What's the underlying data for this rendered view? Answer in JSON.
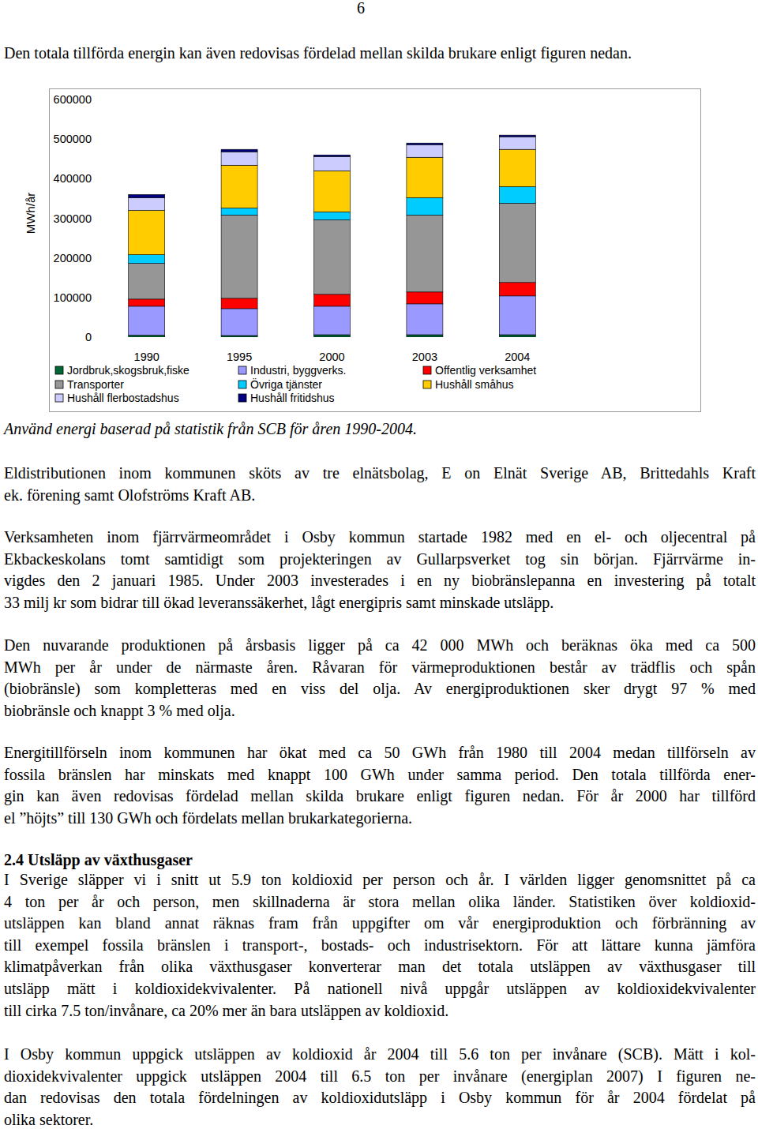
{
  "page_number": "6",
  "intro": "Den totala tillförda energin kan även redovisas fördelad mellan skilda brukare enligt figuren nedan.",
  "chart_data": {
    "type": "bar",
    "stacked": true,
    "y_label": "MWh/år",
    "categories": [
      "1990",
      "1995",
      "2000",
      "2003",
      "2004"
    ],
    "ylim": [
      0,
      600000
    ],
    "yticks": [
      0,
      100000,
      200000,
      300000,
      400000,
      500000,
      600000
    ],
    "grid": false,
    "legend": "bottom",
    "series": [
      {
        "name": "Jordbruk,skogsbruk,fiske",
        "color": "#006633",
        "values": [
          5000,
          4000,
          6000,
          6000,
          6000
        ]
      },
      {
        "name": "Industri, byggverks.",
        "color": "#9999ff",
        "values": [
          73000,
          68000,
          72000,
          78000,
          98000
        ]
      },
      {
        "name": "Offentlig verksamhet",
        "color": "#ff0000",
        "values": [
          18000,
          26000,
          30000,
          30000,
          34000
        ]
      },
      {
        "name": "Transporter",
        "color": "#969696",
        "values": [
          90000,
          210000,
          188000,
          194000,
          200000
        ]
      },
      {
        "name": "Övriga tjänster",
        "color": "#00ccff",
        "values": [
          22000,
          18000,
          20000,
          44000,
          42000
        ]
      },
      {
        "name": "Hushåll småhus",
        "color": "#ffcc00",
        "values": [
          112000,
          108000,
          104000,
          102000,
          94000
        ]
      },
      {
        "name": "Hushåll flerbostadshus",
        "color": "#ccccff",
        "values": [
          32000,
          34000,
          36000,
          32000,
          32000
        ]
      },
      {
        "name": "Hushåll fritidshus",
        "color": "#000080",
        "values": [
          8000,
          6000,
          4000,
          4000,
          4000
        ]
      }
    ]
  },
  "caption": "Använd energi baserad på statistik från SCB för åren 1990-2004.",
  "paragraphs": [
    {
      "lines": [
        "Eldistributionen inom kommunen sköts av tre elnätsbolag, E on Elnät Sverige AB, Brittedahls Kraft",
        "ek. förening samt Olofströms Kraft AB."
      ]
    },
    {
      "lines": [
        "Verksamheten inom fjärrvärmeområdet i Osby kommun startade 1982 med en el- och oljecentral på",
        "Ekbackeskolans tomt samtidigt som projekteringen av Gullarpsverket tog sin början. Fjärrvärme in-",
        "vigdes den 2 januari 1985. Under 2003 investerades i en ny biobränslepanna en investering på totalt",
        "33 milj kr som bidrar till ökad leveranssäkerhet, lågt energipris samt minskade utsläpp."
      ]
    },
    {
      "lines": [
        "Den nuvarande produktionen på årsbasis ligger på ca 42 000 MWh och beräknas öka med ca 500",
        "MWh per år under de närmaste åren. Råvaran för värmeproduktionen består av trädflis och spån",
        "(biobränsle) som kompletteras med en viss del olja. Av energiproduktionen sker drygt 97 % med",
        "biobränsle och knappt 3 % med olja."
      ]
    },
    {
      "lines": [
        "Energitillförseln inom kommunen har ökat med ca 50 GWh från 1980 till 2004 medan tillförseln av",
        "fossila bränslen har minskats med knappt 100 GWh under samma period. Den totala tillförda ener-",
        "gin kan även redovisas fördelad mellan skilda brukare enligt figuren nedan. För år 2000 har tillförd",
        "el ”höjts” till 130 GWh och fördelats mellan brukarkategorierna."
      ]
    },
    {
      "lines": [
        "I Sverige släpper vi i snitt ut 5.9 ton koldioxid per person och år. I världen ligger genomsnittet på ca",
        "4 ton per år och person, men skillnaderna är stora mellan olika länder. Statistiken över  koldioxid-",
        "utsläppen kan bland annat räknas fram från uppgifter om vår energiproduktion och förbränning av",
        "till exempel fossila bränslen i transport-, bostads- och industrisektorn. För att lättare kunna jämföra",
        "klimatpåverkan från olika växthusgaser konverterar man det totala utsläppen av växthusgaser till",
        "utsläpp mätt i koldioxidekvivalenter. På nationell nivå uppgår utsläppen av koldioxidekvivalenter",
        "till cirka 7.5 ton/invånare, ca  20% mer än bara utsläppen av koldioxid."
      ]
    },
    {
      "lines": [
        "I Osby kommun uppgick utsläppen av koldioxid år 2004 till 5.6 ton per invånare (SCB). Mätt i kol-",
        "dioxidekvivalenter uppgick utsläppen 2004 till 6.5 ton per invånare (energiplan 2007) I figuren ne-",
        "dan redovisas den totala fördelningen av koldioxidutsläpp i Osby kommun för år 2004 fördelat på",
        "olika sektorer."
      ]
    }
  ],
  "heading": "2.4 Utsläpp av växthusgaser"
}
